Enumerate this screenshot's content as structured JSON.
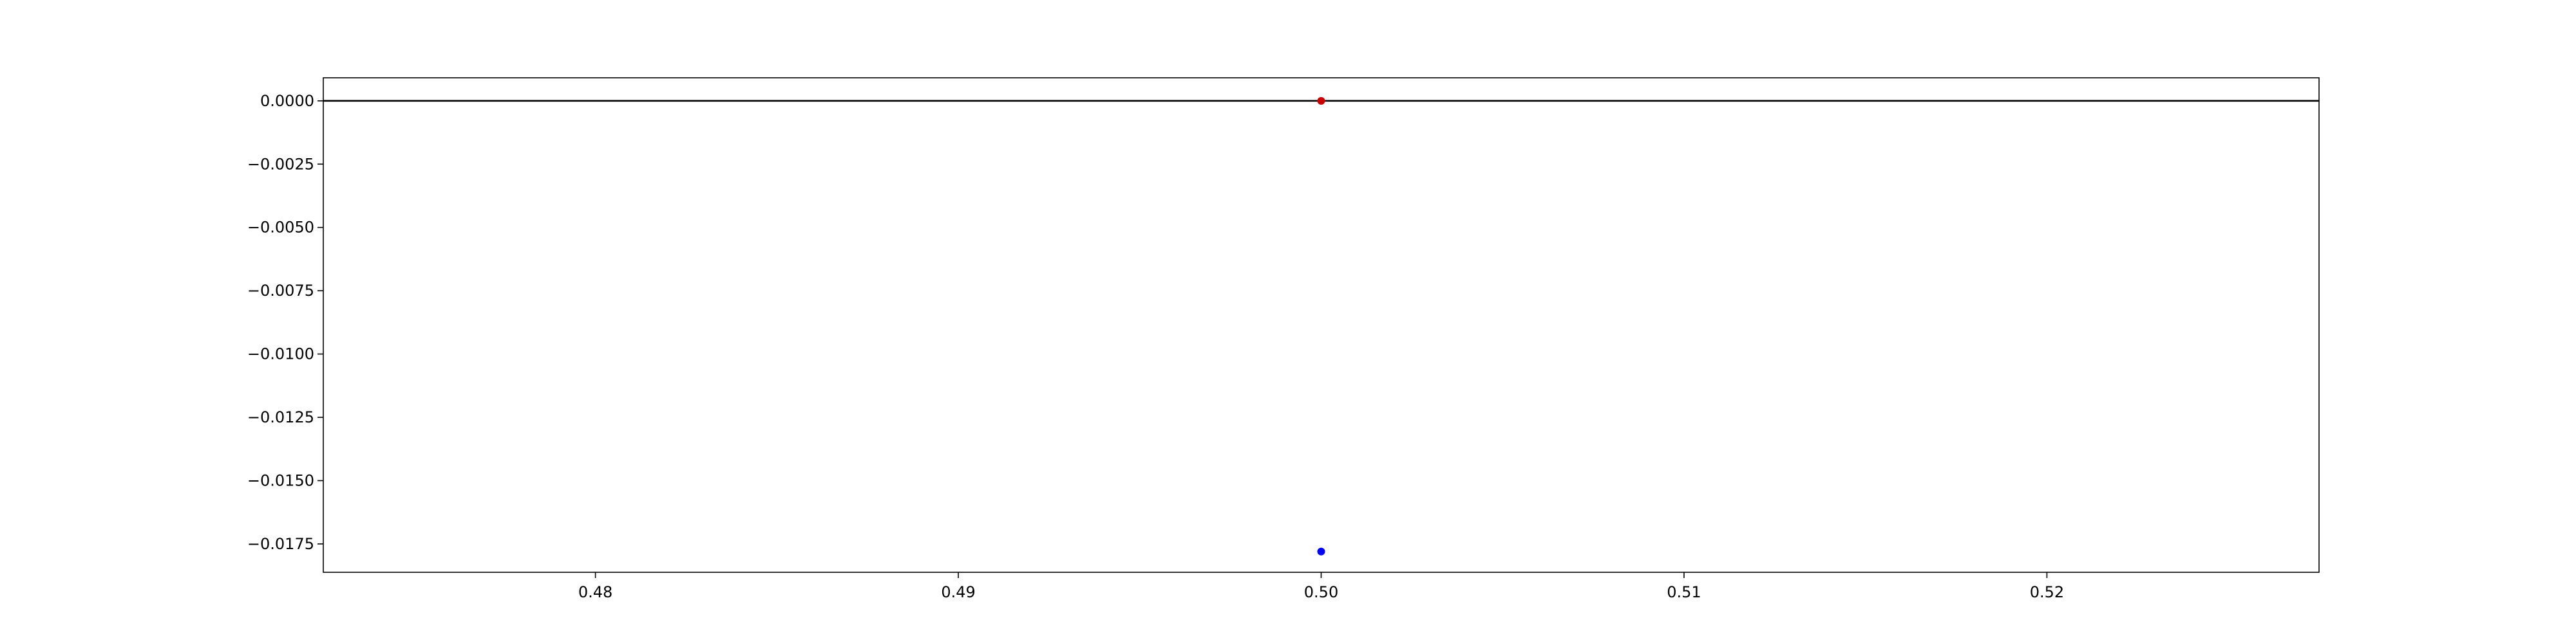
{
  "chart_data": {
    "type": "scatter",
    "xlim": [
      0.4725,
      0.5275
    ],
    "ylim": [
      -0.01862,
      0.00091
    ],
    "xticks": [
      {
        "value": 0.48,
        "label": "0.48"
      },
      {
        "value": 0.49,
        "label": "0.49"
      },
      {
        "value": 0.5,
        "label": "0.50"
      },
      {
        "value": 0.51,
        "label": "0.51"
      },
      {
        "value": 0.52,
        "label": "0.52"
      }
    ],
    "yticks": [
      {
        "value": 0.0,
        "label": "0.0000"
      },
      {
        "value": -0.0025,
        "label": "−0.0025"
      },
      {
        "value": -0.005,
        "label": "−0.0050"
      },
      {
        "value": -0.0075,
        "label": "−0.0075"
      },
      {
        "value": -0.01,
        "label": "−0.0100"
      },
      {
        "value": -0.0125,
        "label": "−0.0125"
      },
      {
        "value": -0.015,
        "label": "−0.0150"
      },
      {
        "value": -0.0175,
        "label": "−0.0175"
      }
    ],
    "hlines": [
      {
        "y": 0.0,
        "color": "#000000"
      }
    ],
    "series": [
      {
        "color": "#cc0000",
        "points": [
          {
            "x": 0.5,
            "y": 0.0
          }
        ]
      },
      {
        "color": "#0000ff",
        "points": [
          {
            "x": 0.5,
            "y": -0.0178
          }
        ]
      }
    ],
    "grid": false
  }
}
